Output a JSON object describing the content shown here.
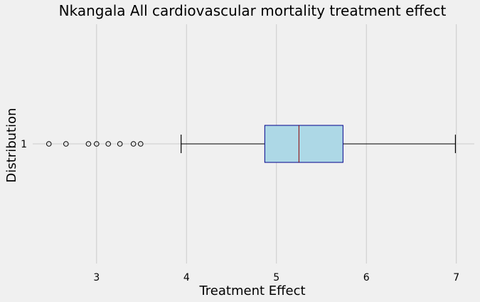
{
  "chart_data": {
    "type": "boxplot",
    "orientation": "horizontal",
    "title": "Nkangala All cardiovascular mortality treatment effect",
    "xlabel": "Treatment Effect",
    "ylabel": "Distribution",
    "xlim": [
      2.29,
      7.2
    ],
    "xticks": [
      "3",
      "4",
      "5",
      "6",
      "7"
    ],
    "yticks": [
      "1"
    ],
    "grid": true,
    "box": {
      "label": "1",
      "whisker_low": 3.94,
      "q1": 4.87,
      "median": 5.25,
      "q3": 5.74,
      "whisker_high": 6.99,
      "outliers": [
        2.47,
        2.66,
        2.91,
        3.0,
        3.13,
        3.26,
        3.41,
        3.49
      ]
    },
    "colors": {
      "background": "#f0f0f0",
      "grid": "#cbcbcb",
      "box_fill": "#add8e6",
      "box_edge": "#00008b",
      "median": "#8b0000",
      "whisker": "#000000"
    }
  }
}
